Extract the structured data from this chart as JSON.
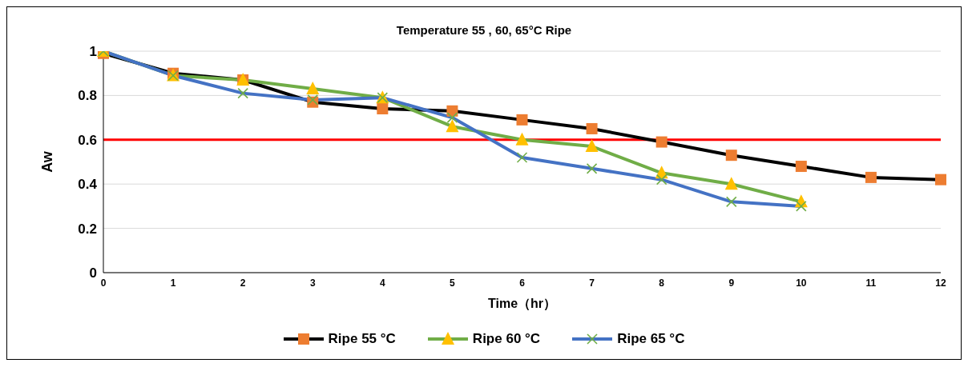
{
  "chart_data": {
    "type": "line",
    "title": "Temperature 55 , 60, 65°C Ripe",
    "xlabel": "Time（hr）",
    "ylabel": "Aw",
    "categories": [
      "0",
      "1",
      "2",
      "3",
      "4",
      "5",
      "6",
      "7",
      "8",
      "9",
      "10",
      "11",
      "12"
    ],
    "series": [
      {
        "name": "Ripe 55 °C",
        "color": "#000000",
        "colors": [
          "#ed7d31",
          "#ed7d31",
          "#ed7d31",
          "#ed7d31",
          "#ed7d31",
          "#ed7d31",
          "#ed7d31",
          "#ed7d31",
          "#ed7d31",
          "#ed7d31",
          "#ed7d31",
          "#ed7d31",
          "#ed7d31"
        ],
        "marker": "square",
        "values": [
          0.99,
          0.9,
          0.87,
          0.77,
          0.74,
          0.73,
          0.69,
          0.65,
          0.59,
          0.53,
          0.48,
          0.43,
          0.42
        ]
      },
      {
        "name": "Ripe 60 °C",
        "color": "#70ad47",
        "colors": [
          "#ffc000",
          "#ffc000",
          "#ffc000",
          "#ffc000",
          "#ffc000",
          "#ffc000",
          "#ffc000",
          "#ffc000",
          "#ffc000",
          "#ffc000",
          "#ffc000",
          null,
          null
        ],
        "marker": "triangle",
        "values": [
          1.0,
          0.89,
          0.87,
          0.83,
          0.79,
          0.66,
          0.6,
          0.57,
          0.45,
          0.4,
          0.32,
          null,
          null
        ]
      },
      {
        "name": "Ripe 65 °C",
        "color": "#4472c4",
        "colors": [
          "#70ad47",
          "#70ad47",
          "#70ad47",
          "#70ad47",
          "#70ad47",
          "#70ad47",
          "#70ad47",
          "#70ad47",
          "#70ad47",
          "#70ad47",
          "#70ad47",
          null,
          null
        ],
        "marker": "cross",
        "values": [
          1.0,
          0.89,
          0.81,
          0.78,
          0.79,
          0.7,
          0.52,
          0.47,
          0.42,
          0.32,
          0.3,
          null,
          null
        ]
      }
    ],
    "ylim": [
      0,
      1
    ],
    "yticks": [
      0,
      0.2,
      0.4,
      0.6,
      0.8,
      1
    ],
    "grid": "y",
    "legend": "bottom",
    "ref_lines": [
      {
        "axis": "y",
        "value": 0.6,
        "color": "#ff0000"
      }
    ]
  }
}
